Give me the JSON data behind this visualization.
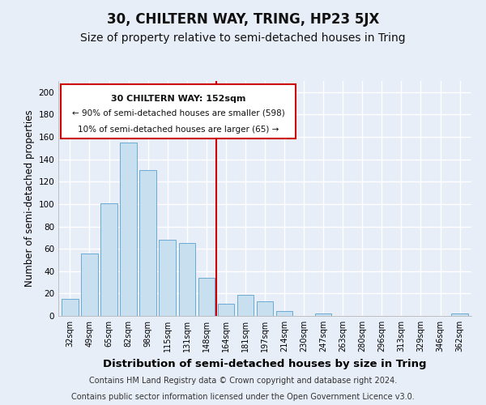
{
  "title": "30, CHILTERN WAY, TRING, HP23 5JX",
  "subtitle": "Size of property relative to semi-detached houses in Tring",
  "xlabel": "Distribution of semi-detached houses by size in Tring",
  "ylabel": "Number of semi-detached properties",
  "bar_labels": [
    "32sqm",
    "49sqm",
    "65sqm",
    "82sqm",
    "98sqm",
    "115sqm",
    "131sqm",
    "148sqm",
    "164sqm",
    "181sqm",
    "197sqm",
    "214sqm",
    "230sqm",
    "247sqm",
    "263sqm",
    "280sqm",
    "296sqm",
    "313sqm",
    "329sqm",
    "346sqm",
    "362sqm"
  ],
  "bar_values": [
    15,
    56,
    101,
    155,
    130,
    68,
    65,
    34,
    11,
    19,
    13,
    4,
    0,
    2,
    0,
    0,
    0,
    0,
    0,
    0,
    2
  ],
  "bar_color": "#c8dff0",
  "bar_edge_color": "#6aaad4",
  "vline_x": 7.5,
  "vline_color": "#cc0000",
  "annotation_title": "30 CHILTERN WAY: 152sqm",
  "annotation_line1": "← 90% of semi-detached houses are smaller (598)",
  "annotation_line2": "10% of semi-detached houses are larger (65) →",
  "annotation_box_color": "#ffffff",
  "annotation_box_edge_color": "#cc0000",
  "ylim": [
    0,
    210
  ],
  "yticks": [
    0,
    20,
    40,
    60,
    80,
    100,
    120,
    140,
    160,
    180,
    200
  ],
  "footer1": "Contains HM Land Registry data © Crown copyright and database right 2024.",
  "footer2": "Contains public sector information licensed under the Open Government Licence v3.0.",
  "background_color": "#e8eef8",
  "grid_color": "#ffffff",
  "title_fontsize": 12,
  "subtitle_fontsize": 10,
  "xlabel_fontsize": 9.5,
  "ylabel_fontsize": 8.5,
  "footer_fontsize": 7
}
